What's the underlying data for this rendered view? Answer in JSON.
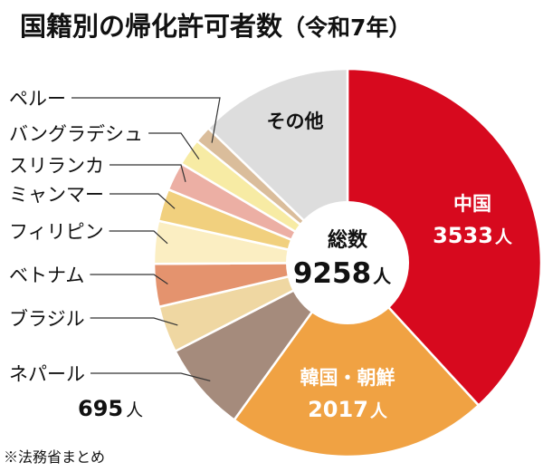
{
  "chart_data": {
    "type": "pie",
    "title": "国籍別の帰化許可者数",
    "title_suffix": "（令和7年）",
    "total_label": "総数",
    "total_value": 9258,
    "unit": "人",
    "source": "※法務省まとめ",
    "slices": [
      {
        "name": "中国",
        "value": 3533,
        "color": "#d7091e",
        "value_label": "3533",
        "unit": "人"
      },
      {
        "name": "韓国・朝鮮",
        "value": 2017,
        "color": "#f0a243",
        "value_label": "2017",
        "unit": "人"
      },
      {
        "name": "ネパール",
        "value": 695,
        "color": "#a58b7c",
        "value_label": "695",
        "unit": "人"
      },
      {
        "name": "ブラジル",
        "value": 360,
        "color": "#efd7a2"
      },
      {
        "name": "ベトナム",
        "value": 330,
        "color": "#e4936e"
      },
      {
        "name": "フィリピン",
        "value": 330,
        "color": "#fbeec2"
      },
      {
        "name": "ミャンマー",
        "value": 250,
        "color": "#f1d07e"
      },
      {
        "name": "スリランカ",
        "value": 220,
        "color": "#ecafa4"
      },
      {
        "name": "バングラデシュ",
        "value": 210,
        "color": "#f7eba4"
      },
      {
        "name": "ペルー",
        "value": 130,
        "color": "#dabd9b"
      },
      {
        "name": "その他",
        "value": 1183,
        "color": "#dddddd"
      }
    ]
  }
}
